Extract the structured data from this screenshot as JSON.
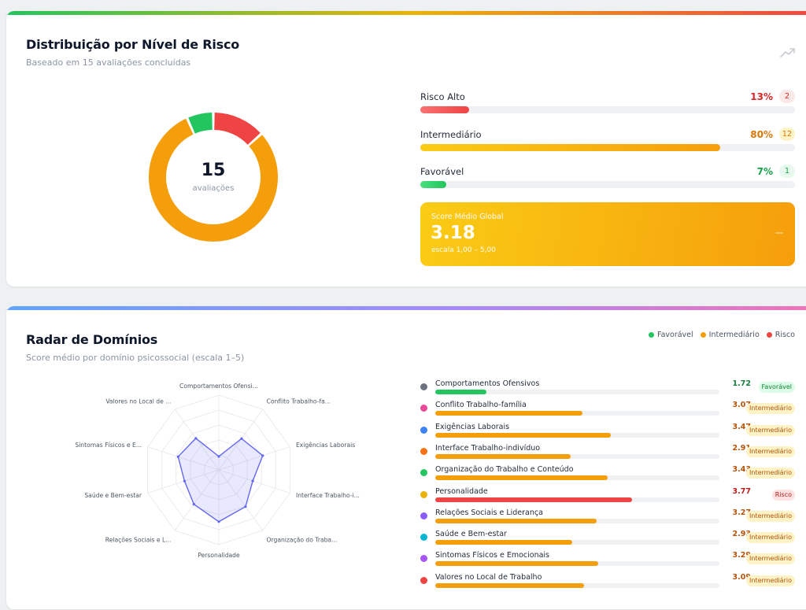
{
  "distribution": {
    "title": "Distribuição por Nível de Risco",
    "subtitle": "Baseado em 15 avaliações concluídas",
    "total": "15",
    "total_label": "avaliações",
    "trend_icon": "trending-up-icon",
    "levels": [
      {
        "name": "Risco Alto",
        "pct": "13%",
        "count": "2",
        "fraction": 0.13,
        "color": "#ef4444",
        "fill_from": "#f87171",
        "fill_to": "#ef4444",
        "badge_bg": "#fde8e8",
        "badge_fg": "#dc2626"
      },
      {
        "name": "Intermediário",
        "pct": "80%",
        "count": "12",
        "fraction": 0.8,
        "color": "#f59e0b",
        "fill_from": "#facc15",
        "fill_to": "#f59e0b",
        "badge_bg": "#fef3c7",
        "badge_fg": "#d97706"
      },
      {
        "name": "Favorável",
        "pct": "7%",
        "count": "1",
        "fraction": 0.07,
        "color": "#22c55e",
        "fill_from": "#4ade80",
        "fill_to": "#22c55e",
        "badge_bg": "#e7f8ec",
        "badge_fg": "#16a34a"
      }
    ],
    "donut_segments": [
      {
        "label": "Risco Alto",
        "count": 2,
        "color": "#ef4444"
      },
      {
        "label": "Intermediário",
        "count": 12,
        "color": "#f59e0b"
      },
      {
        "label": "Favorável",
        "count": 1,
        "color": "#22c55e"
      }
    ],
    "score": {
      "label": "Score Médio Global",
      "value": "3.18",
      "scale": "escala 1,00 – 5,00"
    }
  },
  "radar": {
    "title": "Radar de Domínios",
    "subtitle": "Score médio por domínio psicossocial (escala 1–5)",
    "legend": [
      {
        "label": "Favorável",
        "color": "#22c55e"
      },
      {
        "label": "Intermediário",
        "color": "#f59e0b"
      },
      {
        "label": "Risco",
        "color": "#ef4444"
      }
    ],
    "axes": [
      "Comportamentos Ofensi...",
      "Conflito Trabalho-fa...",
      "Exigências Laborais",
      "Interface Trabalho-i...",
      "Organização do Traba...",
      "Personalidade",
      "Relações Sociais e L...",
      "Saúde e Bem-estar",
      "Sintomas Físicos e E...",
      "Valores no Local de ..."
    ],
    "scale_min": 1,
    "scale_max": 5,
    "series_color": "#6366f1"
  },
  "domains": [
    {
      "name": "Comportamentos Ofensivos",
      "score": "1.72",
      "value": 1.72,
      "dot": "#6b7280",
      "bar": "#22c55e",
      "score_color": "#15803d",
      "badge": "Favorável",
      "badge_bg": "#dcfce7",
      "badge_fg": "#15803d"
    },
    {
      "name": "Conflito Trabalho-família",
      "score": "3.07",
      "value": 3.07,
      "dot": "#ec4899",
      "bar": "#f59e0b",
      "score_color": "#b45309",
      "badge": "Intermediário",
      "badge_bg": "#fef3c7",
      "badge_fg": "#b45309"
    },
    {
      "name": "Exigências Laborais",
      "score": "3.47",
      "value": 3.47,
      "dot": "#3b82f6",
      "bar": "#f59e0b",
      "score_color": "#b45309",
      "badge": "Intermediário",
      "badge_bg": "#fef3c7",
      "badge_fg": "#b45309"
    },
    {
      "name": "Interface Trabalho-indivíduo",
      "score": "2.91",
      "value": 2.91,
      "dot": "#f97316",
      "bar": "#f59e0b",
      "score_color": "#b45309",
      "badge": "Intermediário",
      "badge_bg": "#fef3c7",
      "badge_fg": "#b45309"
    },
    {
      "name": "Organização do Trabalho e Conteúdo",
      "score": "3.43",
      "value": 3.43,
      "dot": "#22c55e",
      "bar": "#f59e0b",
      "score_color": "#b45309",
      "badge": "Intermediário",
      "badge_bg": "#fef3c7",
      "badge_fg": "#b45309"
    },
    {
      "name": "Personalidade",
      "score": "3.77",
      "value": 3.77,
      "dot": "#eab308",
      "bar": "#ef4444",
      "score_color": "#b91c1c",
      "badge": "Risco",
      "badge_bg": "#fee2e2",
      "badge_fg": "#b91c1c"
    },
    {
      "name": "Relações Sociais e Liderança",
      "score": "3.27",
      "value": 3.27,
      "dot": "#8b5cf6",
      "bar": "#f59e0b",
      "score_color": "#b45309",
      "badge": "Intermediário",
      "badge_bg": "#fef3c7",
      "badge_fg": "#b45309"
    },
    {
      "name": "Saúde e Bem-estar",
      "score": "2.93",
      "value": 2.93,
      "dot": "#06b6d4",
      "bar": "#f59e0b",
      "score_color": "#b45309",
      "badge": "Intermediário",
      "badge_bg": "#fef3c7",
      "badge_fg": "#b45309"
    },
    {
      "name": "Sintomas Físicos e Emocionais",
      "score": "3.29",
      "value": 3.29,
      "dot": "#a855f7",
      "bar": "#f59e0b",
      "score_color": "#b45309",
      "badge": "Intermediário",
      "badge_bg": "#fef3c7",
      "badge_fg": "#b45309"
    },
    {
      "name": "Valores no Local de Trabalho",
      "score": "3.09",
      "value": 3.09,
      "dot": "#ef4444",
      "bar": "#f59e0b",
      "score_color": "#b45309",
      "badge": "Intermediário",
      "badge_bg": "#fef3c7",
      "badge_fg": "#b45309"
    }
  ]
}
